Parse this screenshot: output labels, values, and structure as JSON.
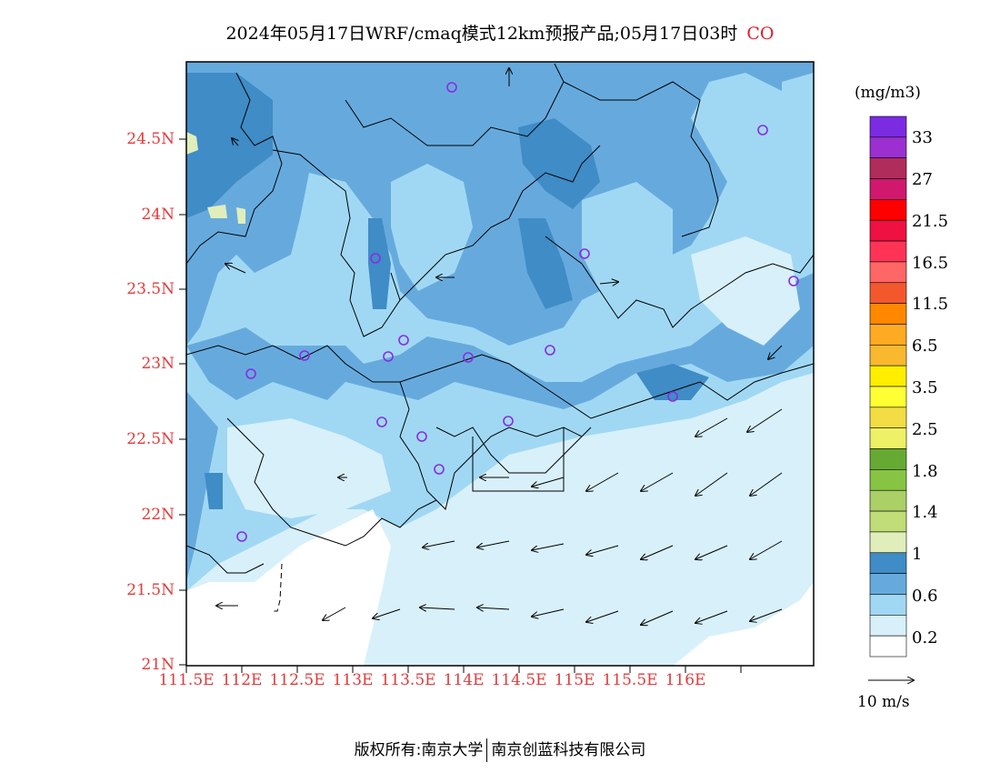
{
  "title": {
    "text": "2024年05月17日WRF/cmaq模式12km预报产品;05月17日03时",
    "species": "CO"
  },
  "axes": {
    "lat_ticks": [
      "24.5N",
      "24N",
      "23.5N",
      "23N",
      "22.5N",
      "22N",
      "21.5N",
      "21N"
    ],
    "lon_ticks": [
      "111.5E",
      "112E",
      "112.5E",
      "113E",
      "113.5E",
      "114E",
      "114.5E",
      "115E",
      "115.5E",
      "116E"
    ]
  },
  "colorbar": {
    "unit": "(mg/m3)",
    "labels": [
      "33",
      "27",
      "21.5",
      "16.5",
      "11.5",
      "6.5",
      "3.5",
      "2.5",
      "1.8",
      "1.4",
      "1",
      "0.6",
      "0.2"
    ],
    "colors": [
      "#7b2be2",
      "#9b2fd0",
      "#b02c5a",
      "#d0186e",
      "#ff0000",
      "#ee1142",
      "#ff3355",
      "#ff6666",
      "#f2582c",
      "#ff8800",
      "#ffaa22",
      "#f9b82e",
      "#ffee00",
      "#ffff33",
      "#f2dd44",
      "#eef066",
      "#66aa33",
      "#88c444",
      "#aad066",
      "#c0dd77",
      "#e0eebb",
      "#3f8cc6",
      "#66aadd",
      "#a0d8f4",
      "#d8f0fa",
      "#ffffff"
    ]
  },
  "wind_reference": {
    "label": "10 m/s"
  },
  "footer": {
    "left": "版权所有:南京大学",
    "right": "南京创蓝科技有限公司"
  },
  "map_colors": {
    "lowest": "#ffffff",
    "low": "#d8f0fa",
    "mid_low": "#a0d8f4",
    "mid": "#66aadd",
    "high": "#3f8cc6",
    "very_high": "#e0eebb"
  }
}
